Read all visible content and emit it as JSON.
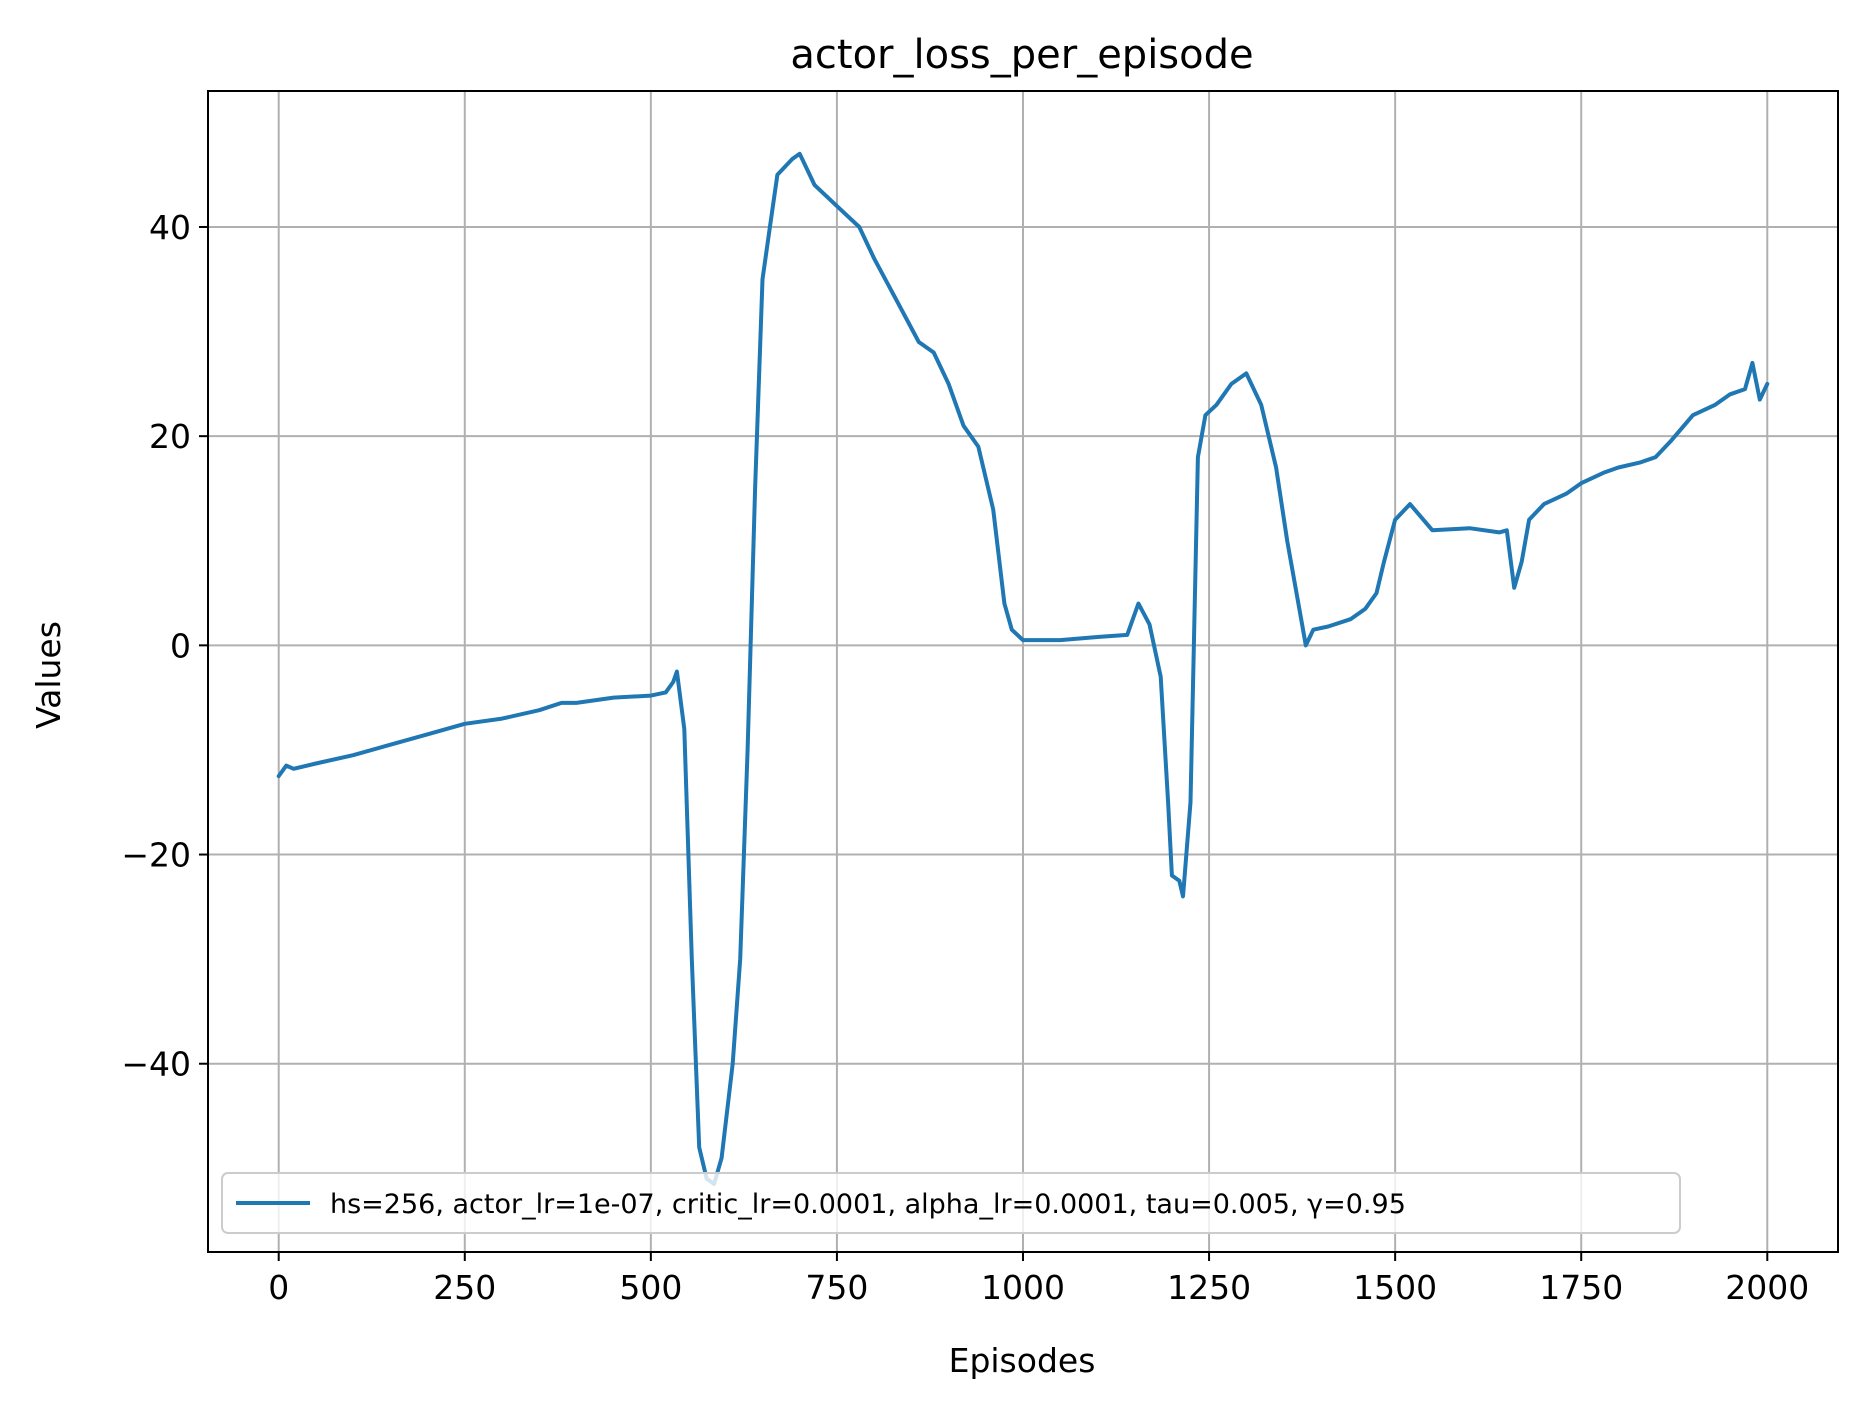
{
  "chart_data": {
    "type": "line",
    "title": "actor_loss_per_episode",
    "xlabel": "Episodes",
    "ylabel": "Values",
    "xlim": [
      -95,
      2095
    ],
    "ylim": [
      -58,
      53
    ],
    "xticks": [
      0,
      250,
      500,
      750,
      1000,
      1250,
      1500,
      1750,
      2000
    ],
    "yticks": [
      -40,
      -20,
      0,
      20,
      40
    ],
    "xtick_labels": [
      "0",
      "250",
      "500",
      "750",
      "1000",
      "1250",
      "1500",
      "1750",
      "2000"
    ],
    "ytick_labels": [
      "−40",
      "−20",
      "0",
      "20",
      "40"
    ],
    "grid": true,
    "legend": "lower-left",
    "series": [
      {
        "name": "hs=256, actor_lr=1e-07, critic_lr=0.0001, alpha_lr=0.0001, tau=0.005, γ=0.95",
        "color": "#1f77b4",
        "x": [
          0,
          10,
          20,
          50,
          100,
          150,
          200,
          250,
          300,
          350,
          380,
          400,
          450,
          500,
          520,
          530,
          535,
          545,
          555,
          565,
          575,
          585,
          595,
          610,
          620,
          630,
          640,
          650,
          660,
          670,
          690,
          700,
          720,
          750,
          780,
          800,
          830,
          860,
          880,
          900,
          920,
          940,
          960,
          975,
          985,
          1000,
          1050,
          1100,
          1140,
          1155,
          1170,
          1185,
          1195,
          1200,
          1210,
          1215,
          1225,
          1235,
          1245,
          1260,
          1280,
          1300,
          1320,
          1340,
          1355,
          1375,
          1380,
          1390,
          1410,
          1440,
          1460,
          1475,
          1485,
          1500,
          1520,
          1550,
          1600,
          1640,
          1650,
          1660,
          1670,
          1680,
          1700,
          1730,
          1750,
          1780,
          1800,
          1830,
          1850,
          1870,
          1900,
          1930,
          1950,
          1970,
          1980,
          1990,
          2000
        ],
        "y": [
          -12.5,
          -11.5,
          -11.8,
          -11.3,
          -10.5,
          -9.5,
          -8.5,
          -7.5,
          -7,
          -6.2,
          -5.5,
          -5.5,
          -5,
          -4.8,
          -4.5,
          -3.5,
          -2.5,
          -8,
          -30,
          -48,
          -51,
          -51.5,
          -49,
          -40,
          -30,
          -10,
          15,
          35,
          40,
          45,
          46.5,
          47,
          44,
          42,
          40,
          37,
          33,
          29,
          28,
          25,
          21,
          19,
          13,
          4,
          1.5,
          0.5,
          0.5,
          0.8,
          1,
          4,
          2,
          -3,
          -15,
          -22,
          -22.5,
          -24,
          -15,
          18,
          22,
          23,
          25,
          26,
          23,
          17,
          10,
          2,
          0,
          1.5,
          1.8,
          2.5,
          3.5,
          5,
          8,
          12,
          13.5,
          11,
          11.2,
          10.8,
          11,
          5.5,
          8,
          12,
          13.5,
          14.5,
          15.5,
          16.5,
          17,
          17.5,
          18,
          19.5,
          22,
          23,
          24,
          24.5,
          27,
          23.5,
          25
        ]
      }
    ]
  }
}
